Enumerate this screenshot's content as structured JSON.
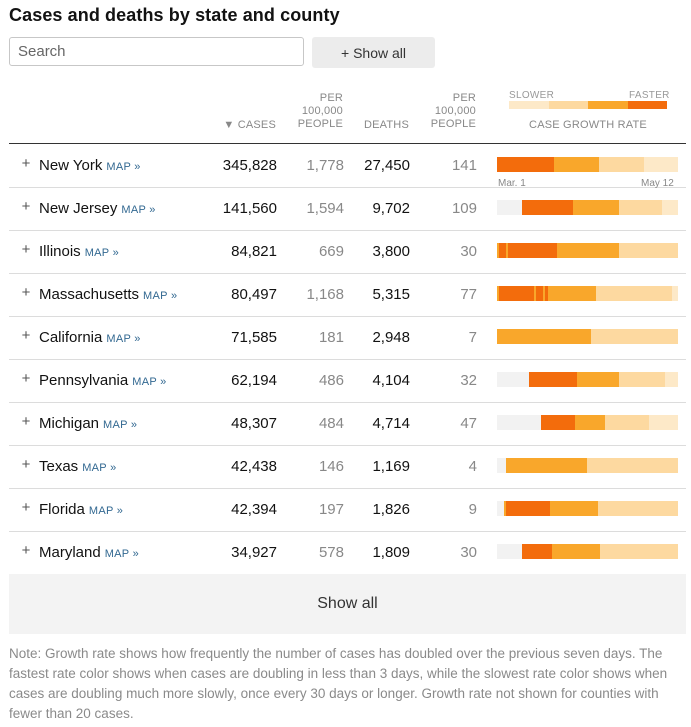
{
  "title": "Cases and deaths by state and county",
  "search": {
    "placeholder": "Search"
  },
  "show_all_top": "+ Show all",
  "headers": {
    "cases": "▼ CASES",
    "per100_line1": "PER",
    "per100_line2": "100,000",
    "per100_line3": "PEOPLE",
    "deaths": "DEATHS",
    "growth": "CASE GROWTH RATE"
  },
  "legend": {
    "slower": "SLOWER",
    "faster": "FASTER"
  },
  "colors": {
    "faster": "#f36c0c",
    "fast": "#f9a72b",
    "slow": "#fdd9a0",
    "slowest": "#fde9c8",
    "none": "#f2f2f2",
    "link": "#326891"
  },
  "expand_symbol": "+",
  "map_label": "MAP »",
  "axis": {
    "start": "Mar. 1",
    "end": "May 12"
  },
  "rows": [
    {
      "state": "New York",
      "cases": "345,828",
      "cases_per_100k": "1,778",
      "deaths": "27,450",
      "deaths_per_100k": "141",
      "growth": "4444444444444444444444433333333333333333322222222222222222211111111111111"
    },
    {
      "state": "New Jersey",
      "cases": "141,560",
      "cases_per_100k": "1,594",
      "deaths": "9,702",
      "deaths_per_100k": "109",
      "growth": "0000000000044444444444444444444443333333333333333333322222222222222222221111111"
    },
    {
      "state": "Illinois",
      "cases": "84,821",
      "cases_per_100k": "669",
      "deaths": "3,800",
      "deaths_per_100k": "30",
      "growth": "3444344444444444444444444433333333333333333333333333322222222222222222222222222"
    },
    {
      "state": "Massachusetts",
      "cases": "80,497",
      "cases_per_100k": "1,168",
      "deaths": "5,315",
      "deaths_per_100k": "77",
      "growth": "3444444444444444344434333333333333333333333222222222222222222222222222222222111"
    },
    {
      "state": "California",
      "cases": "71,585",
      "cases_per_100k": "181",
      "deaths": "2,948",
      "deaths_per_100k": "7",
      "growth": "3333333333333333333333333333333333333333322222222222222222222222222222222222222"
    },
    {
      "state": "Pennsylvania",
      "cases": "62,194",
      "cases_per_100k": "486",
      "deaths": "4,104",
      "deaths_per_100k": "32",
      "growth": "0000000000000044444444444444444444433333333333333333322222222222222222222111111"
    },
    {
      "state": "Michigan",
      "cases": "48,307",
      "cases_per_100k": "484",
      "deaths": "4,714",
      "deaths_per_100k": "47",
      "growth": "0000000000000000000444444444444444333333333333322222222222222222221111111111111"
    },
    {
      "state": "Texas",
      "cases": "42,438",
      "cases_per_100k": "146",
      "deaths": "1,169",
      "deaths_per_100k": "4",
      "growth": "0000333333333333333333333333333333333332222222222222222222222222222222222222222"
    },
    {
      "state": "Florida",
      "cases": "42,394",
      "cases_per_100k": "197",
      "deaths": "1,826",
      "deaths_per_100k": "9",
      "growth": "0003444444444444444444433333333333333333333322222222222222222222222222222222222"
    },
    {
      "state": "Maryland",
      "cases": "34,927",
      "cases_per_100k": "578",
      "deaths": "1,809",
      "deaths_per_100k": "30",
      "growth": "0000000000044444444444443333333333333333333332222222222222222222222222222222222"
    }
  ],
  "show_all_bottom": "Show all",
  "note": "Note: Growth rate shows how frequently the number of cases has doubled over the previous seven days. The fastest rate color shows when cases are doubling in less than 3 days, while the slowest rate color shows when cases are doubling much more slowly, once every 30 days or longer. Growth rate not shown for counties with fewer than 20 cases."
}
